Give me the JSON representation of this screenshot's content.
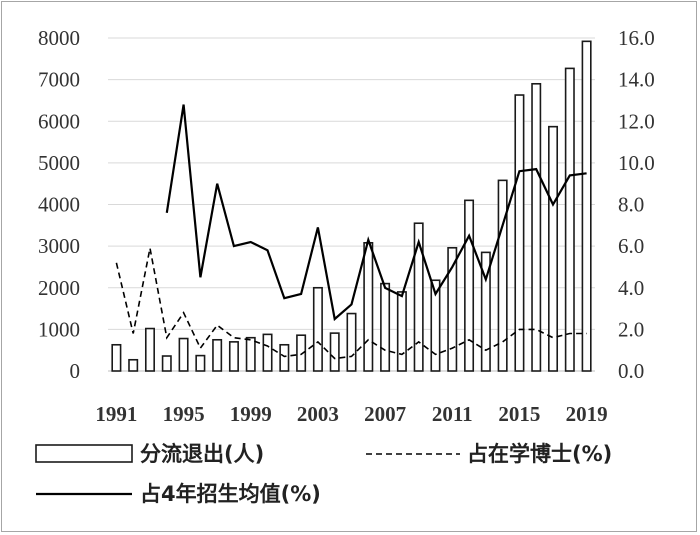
{
  "chart_data": {
    "type": "bar",
    "x": [
      1991,
      1992,
      1993,
      1994,
      1995,
      1996,
      1997,
      1998,
      1999,
      2000,
      2001,
      2002,
      2003,
      2004,
      2005,
      2006,
      2007,
      2008,
      2009,
      2010,
      2011,
      2012,
      2013,
      2014,
      2015,
      2016,
      2017,
      2018,
      2019
    ],
    "x_ticks": [
      "1991",
      "1995",
      "1999",
      "2003",
      "2007",
      "2011",
      "2015",
      "2019"
    ],
    "y_ticks_left": [
      "0",
      "1000",
      "2000",
      "3000",
      "4000",
      "5000",
      "6000",
      "7000",
      "8000"
    ],
    "y_ticks_right": [
      "0.0",
      "2.0",
      "4.0",
      "6.0",
      "8.0",
      "10.0",
      "12.0",
      "14.0",
      "16.0"
    ],
    "ylim_left": [
      0,
      8000
    ],
    "ylim_right": [
      0,
      16
    ],
    "series": [
      {
        "name": "分流退出(人)",
        "type": "bar",
        "axis": "left",
        "values": [
          630,
          270,
          1020,
          360,
          780,
          370,
          750,
          700,
          800,
          880,
          630,
          860,
          2000,
          910,
          1380,
          3080,
          2100,
          1900,
          3550,
          2180,
          2960,
          4100,
          2850,
          4580,
          6630,
          6900,
          5870,
          7270,
          7920
        ]
      },
      {
        "name": "占在学博士(%)",
        "type": "line",
        "style": "dashed",
        "axis": "right",
        "values": [
          5.2,
          1.8,
          5.9,
          1.6,
          2.8,
          1.1,
          2.2,
          1.6,
          1.5,
          1.2,
          0.7,
          0.8,
          1.4,
          0.6,
          0.7,
          1.5,
          1.0,
          0.8,
          1.4,
          0.8,
          1.1,
          1.5,
          1.0,
          1.4,
          2.0,
          2.0,
          1.6,
          1.8,
          1.8
        ]
      },
      {
        "name": "占4年招生均值(%)",
        "type": "line",
        "style": "solid",
        "axis": "right",
        "values": [
          null,
          null,
          null,
          7.6,
          12.8,
          4.5,
          9.0,
          6.0,
          6.2,
          5.8,
          3.5,
          3.7,
          6.9,
          2.5,
          3.2,
          6.3,
          4.0,
          3.6,
          6.2,
          3.7,
          5.0,
          6.5,
          4.4,
          7.0,
          9.6,
          9.7,
          8.0,
          9.4,
          9.5
        ]
      }
    ],
    "grid": true,
    "legend_position": "bottom"
  }
}
